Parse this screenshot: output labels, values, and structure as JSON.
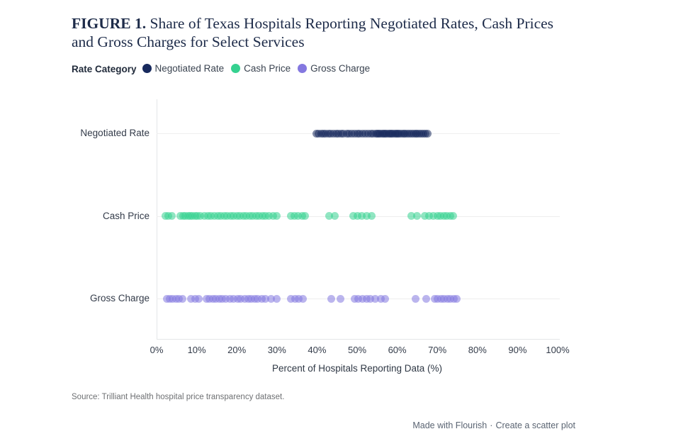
{
  "title": {
    "prefix": "FIGURE 1.",
    "text": "Share of Texas Hospitals Reporting Negotiated Rates, Cash Prices and Gross Charges for Select Services"
  },
  "legend": {
    "label": "Rate Category",
    "items": [
      {
        "label": "Negotiated Rate",
        "color": "#17295d"
      },
      {
        "label": "Cash Price",
        "color": "#35d190"
      },
      {
        "label": "Gross Charge",
        "color": "#8478e0"
      }
    ]
  },
  "chart_data": {
    "type": "scatter",
    "orientation": "horizontal strip plot, one row per category",
    "categories": [
      "Negotiated Rate",
      "Cash Price",
      "Gross Charge"
    ],
    "xlabel": "Percent of Hospitals Reporting Data (%)",
    "xlim": [
      0,
      100
    ],
    "x_ticks": [
      "0%",
      "10%",
      "20%",
      "30%",
      "40%",
      "50%",
      "60%",
      "70%",
      "80%",
      "90%",
      "100%"
    ],
    "grid": "light horizontal line per category row, left y-axis line, bottom x-axis line",
    "legend_position": "top",
    "point_opacity": 0.55,
    "series": [
      {
        "name": "Negotiated Rate",
        "color": "#17295d",
        "values": [
          39.8,
          40.4,
          41.0,
          41.6,
          42.2,
          42.8,
          43.4,
          44.0,
          44.8,
          45.4,
          46.0,
          46.6,
          47.4,
          48.0,
          48.6,
          49.4,
          50.0,
          50.6,
          51.4,
          52.0,
          52.8,
          53.4,
          54.0,
          54.6,
          55.0,
          55.4,
          55.8,
          56.2,
          56.6,
          57.0,
          57.4,
          57.8,
          58.2,
          58.6,
          59.0,
          59.4,
          59.8,
          60.2,
          60.6,
          61.0,
          61.5,
          62.0,
          62.5,
          63.0,
          63.5,
          64.0,
          64.5,
          65.0,
          65.5,
          66.0,
          66.5,
          67.0,
          67.5
        ]
      },
      {
        "name": "Cash Price",
        "color": "#35d190",
        "values": [
          2.2,
          3.0,
          3.8,
          6.0,
          6.6,
          7.2,
          7.8,
          8.4,
          9.0,
          9.6,
          10.2,
          10.8,
          12.0,
          12.8,
          13.6,
          14.4,
          15.2,
          16.0,
          16.8,
          17.6,
          18.4,
          19.2,
          20.0,
          20.8,
          21.6,
          22.4,
          23.2,
          24.0,
          24.8,
          25.6,
          26.4,
          27.2,
          28.0,
          29.0,
          30.0,
          33.5,
          34.3,
          35.3,
          36.3,
          37.0,
          43.0,
          44.5,
          49.0,
          50.0,
          51.2,
          52.4,
          53.6,
          63.5,
          65.0,
          66.8,
          68.0,
          69.0,
          70.0,
          70.8,
          71.6,
          72.4,
          73.2,
          74.0
        ]
      },
      {
        "name": "Gross Charge",
        "color": "#8478e0",
        "values": [
          2.5,
          3.2,
          4.0,
          4.8,
          5.6,
          6.4,
          8.6,
          9.6,
          10.6,
          12.4,
          13.2,
          14.0,
          14.8,
          15.6,
          16.4,
          17.2,
          18.2,
          19.2,
          20.2,
          21.0,
          22.0,
          22.8,
          23.6,
          24.4,
          25.2,
          26.2,
          27.2,
          28.6,
          30.0,
          33.5,
          34.5,
          35.5,
          36.5,
          43.5,
          45.8,
          49.3,
          50.3,
          51.3,
          52.3,
          53.3,
          54.5,
          56.0,
          57.0,
          64.5,
          67.3,
          69.3,
          70.1,
          70.9,
          71.7,
          72.5,
          73.3,
          74.1,
          74.9
        ]
      }
    ]
  },
  "source": "Source: Trilliant Health hospital price transparency dataset.",
  "footer": {
    "made_with": "Made with Flourish",
    "separator": "·",
    "cta": "Create a scatter plot"
  }
}
